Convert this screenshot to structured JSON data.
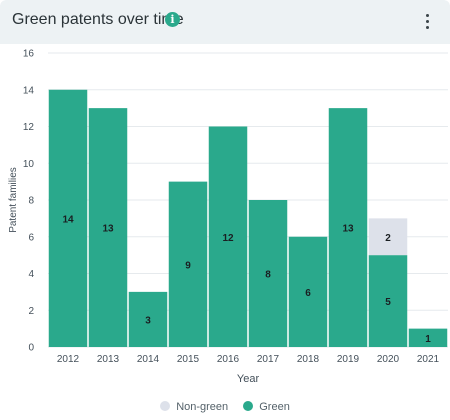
{
  "header": {
    "title": "Green patents over time",
    "info_icon": "info-icon",
    "menu_icon": "vertical-ellipsis-icon"
  },
  "colors": {
    "green": "#2aa98c",
    "non_green": "#dde1ea",
    "grid": "#e6eaed",
    "header_bg": "#edf2f4"
  },
  "chart_data": {
    "type": "bar",
    "stacked": true,
    "categories": [
      "2012",
      "2013",
      "2014",
      "2015",
      "2016",
      "2017",
      "2018",
      "2019",
      "2020",
      "2021"
    ],
    "series": [
      {
        "name": "Green",
        "values": [
          14,
          13,
          3,
          9,
          12,
          8,
          6,
          13,
          5,
          1
        ]
      },
      {
        "name": "Non-green",
        "values": [
          0,
          0,
          0,
          0,
          0,
          0,
          0,
          0,
          2,
          0
        ]
      }
    ],
    "xlabel": "Year",
    "ylabel": "Patent families",
    "ylim": [
      0,
      16
    ],
    "yticks": [
      0,
      2,
      4,
      6,
      8,
      10,
      12,
      14,
      16
    ],
    "grid": true,
    "legend": {
      "placement": "bottom",
      "entries": [
        "Non-green",
        "Green"
      ]
    }
  }
}
